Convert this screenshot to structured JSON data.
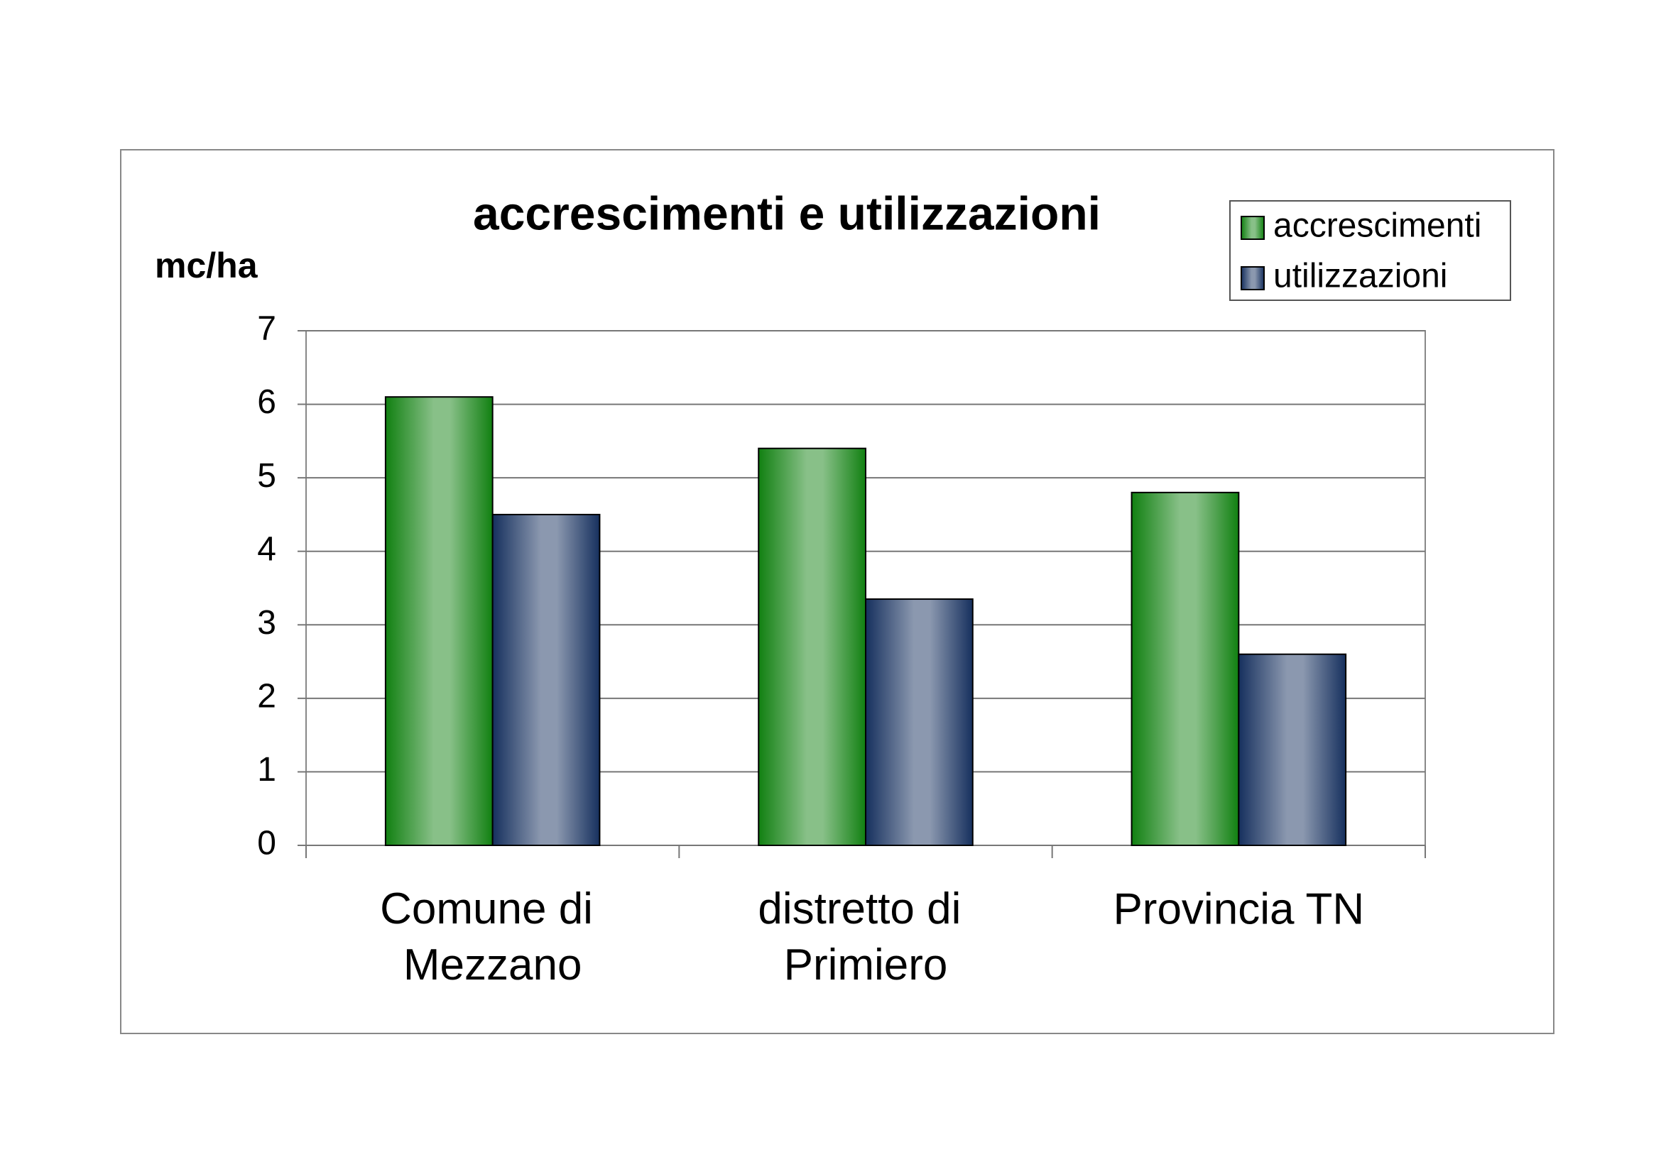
{
  "chart_data": {
    "type": "bar",
    "title": "accrescimenti e utilizzazioni",
    "y_label": "mc/ha",
    "categories": [
      "Comune di Mezzano",
      "distretto di Primiero",
      "Provincia TN"
    ],
    "series": [
      {
        "name": "accrescimenti",
        "color": "#118011",
        "values": [
          6.1,
          5.4,
          4.8
        ]
      },
      {
        "name": "utilizzazioni",
        "color": "#16305e",
        "values": [
          4.5,
          3.35,
          2.6
        ]
      }
    ],
    "ylim": [
      0,
      7
    ],
    "yticks": [
      0,
      1,
      2,
      3,
      4,
      5,
      6,
      7
    ],
    "grid": true,
    "legend": "top-right"
  }
}
